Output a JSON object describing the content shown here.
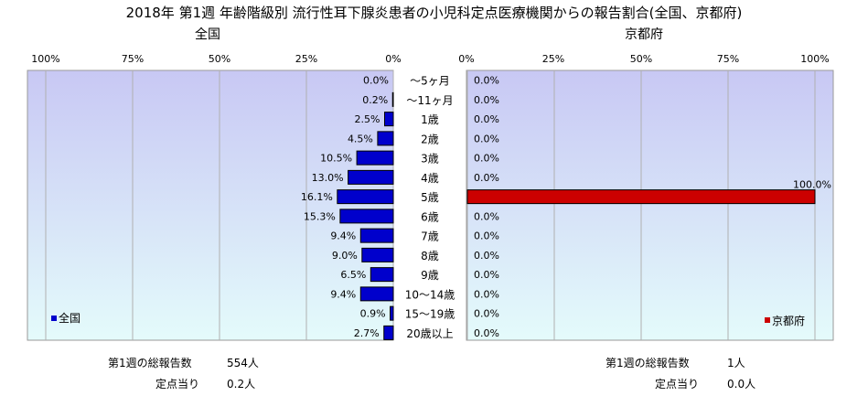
{
  "title": "2018年 第1週 年齢階級別 流行性耳下腺炎患者の小児科定点医療機関からの報告割合(全国、京都府)",
  "categories": [
    "～5ヶ月",
    "～11ヶ月",
    "1歳",
    "2歳",
    "3歳",
    "4歳",
    "5歳",
    "6歳",
    "7歳",
    "8歳",
    "9歳",
    "10～14歳",
    "15～19歳",
    "20歳以上"
  ],
  "left_panel": {
    "title": "全国",
    "tick_labels": [
      "100%",
      "75%",
      "50%",
      "25%",
      "0%"
    ],
    "legend": "全国",
    "bar_color": "#0000cc",
    "footer": {
      "reports_label": "第1週の総報告数",
      "reports_value": "554人",
      "per_label": "定点当り",
      "per_value": "0.2人"
    }
  },
  "right_panel": {
    "title": "京都府",
    "tick_labels": [
      "0%",
      "25%",
      "50%",
      "75%",
      "100%"
    ],
    "legend": "京都府",
    "bar_color": "#cc0000",
    "footer": {
      "reports_label": "第1週の総報告数",
      "reports_value": "1人",
      "per_label": "定点当り",
      "per_value": "0.0人"
    }
  },
  "chart_data": [
    {
      "type": "bar",
      "orientation": "horizontal",
      "title": "全国",
      "categories": [
        "～5ヶ月",
        "～11ヶ月",
        "1歳",
        "2歳",
        "3歳",
        "4歳",
        "5歳",
        "6歳",
        "7歳",
        "8歳",
        "9歳",
        "10～14歳",
        "15～19歳",
        "20歳以上"
      ],
      "series": [
        {
          "name": "全国",
          "values": [
            0.0,
            0.2,
            2.5,
            4.5,
            10.5,
            13.0,
            16.1,
            15.3,
            9.4,
            9.0,
            6.5,
            9.4,
            0.9,
            2.7
          ]
        }
      ],
      "data_labels": [
        "0.0%",
        "0.2%",
        "2.5%",
        "4.5%",
        "10.5%",
        "13.0%",
        "16.1%",
        "15.3%",
        "9.4%",
        "9.0%",
        "6.5%",
        "9.4%",
        "0.9%",
        "2.7%"
      ],
      "xlim": [
        100,
        0
      ],
      "grid": true,
      "legend_position": "bottom-left"
    },
    {
      "type": "bar",
      "orientation": "horizontal",
      "title": "京都府",
      "categories": [
        "～5ヶ月",
        "～11ヶ月",
        "1歳",
        "2歳",
        "3歳",
        "4歳",
        "5歳",
        "6歳",
        "7歳",
        "8歳",
        "9歳",
        "10～14歳",
        "15～19歳",
        "20歳以上"
      ],
      "series": [
        {
          "name": "京都府",
          "values": [
            0.0,
            0.0,
            0.0,
            0.0,
            0.0,
            0.0,
            100.0,
            0.0,
            0.0,
            0.0,
            0.0,
            0.0,
            0.0,
            0.0
          ]
        }
      ],
      "data_labels": [
        "0.0%",
        "0.0%",
        "0.0%",
        "0.0%",
        "0.0%",
        "0.0%",
        "100.0%",
        "0.0%",
        "0.0%",
        "0.0%",
        "0.0%",
        "0.0%",
        "0.0%",
        "0.0%"
      ],
      "xlim": [
        0,
        100
      ],
      "grid": true,
      "legend_position": "bottom-right"
    }
  ]
}
